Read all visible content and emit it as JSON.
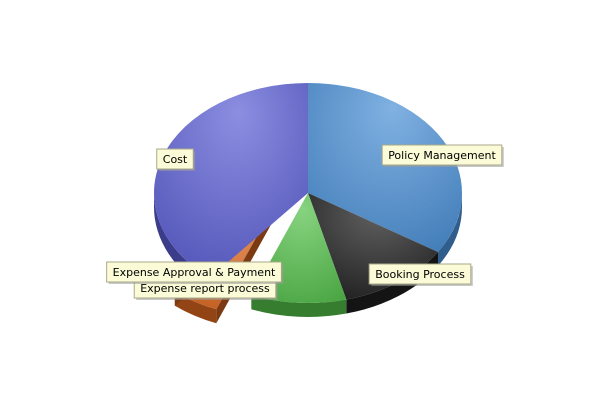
{
  "chart_data": {
    "type": "pie",
    "style": "3d-exploded",
    "legend": "none",
    "slices": [
      {
        "label": "Policy Management",
        "value": 34,
        "color": "#4a8fd6"
      },
      {
        "label": "Booking Process",
        "value": 12,
        "color": "#1e1e1e"
      },
      {
        "label": "Expense report process",
        "value": 10,
        "color": "#54c04a"
      },
      {
        "label": "Expense Approval & Payment",
        "value": 5,
        "color": "#e0691e"
      },
      {
        "label": "Cost",
        "value": 39,
        "color": "#5a5ed4"
      }
    ]
  }
}
